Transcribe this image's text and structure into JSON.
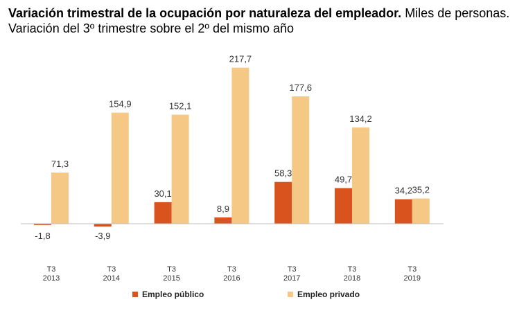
{
  "header": {
    "title_bold": "Variación trimestral de la ocupación por naturaleza del empleador.",
    "title_rest": " Miles de personas.",
    "subtitle": "Variación del 3º trimestre sobre el 2º del mismo año"
  },
  "colors": {
    "publico": "#D9531E",
    "privado": "#F6C886",
    "axis": "#BFBFBF"
  },
  "legend": {
    "publico_label": "Empleo público",
    "privado_label": "Empleo privado"
  },
  "chart_data": {
    "type": "bar",
    "title": "Variación trimestral de la ocupación por naturaleza del empleador. Miles de personas.",
    "subtitle": "Variación del 3º trimestre sobre el 2º del mismo año",
    "categories": [
      [
        "T3",
        "2013"
      ],
      [
        "T3",
        "2014"
      ],
      [
        "T3",
        "2015"
      ],
      [
        "T3",
        "2016"
      ],
      [
        "T3",
        "2017"
      ],
      [
        "T3",
        "2018"
      ],
      [
        "T3",
        "2019"
      ]
    ],
    "series": [
      {
        "name": "Empleo público",
        "key": "publico",
        "values": [
          -1.8,
          -3.9,
          30.1,
          8.9,
          58.3,
          49.7,
          34.2
        ],
        "labels": [
          "-1,8",
          "-3,9",
          "30,1",
          "8,9",
          "58,3",
          "49,7",
          "34,2"
        ]
      },
      {
        "name": "Empleo privado",
        "key": "privado",
        "values": [
          71.3,
          154.9,
          152.1,
          217.7,
          177.6,
          134.2,
          35.2
        ],
        "labels": [
          "71,3",
          "154,9",
          "152,1",
          "217,7",
          "177,6",
          "134,2",
          "35,2"
        ]
      }
    ],
    "xlabel": "",
    "ylabel": "",
    "ylim": [
      -5,
      220
    ],
    "grid": false,
    "legend_position": "bottom"
  }
}
